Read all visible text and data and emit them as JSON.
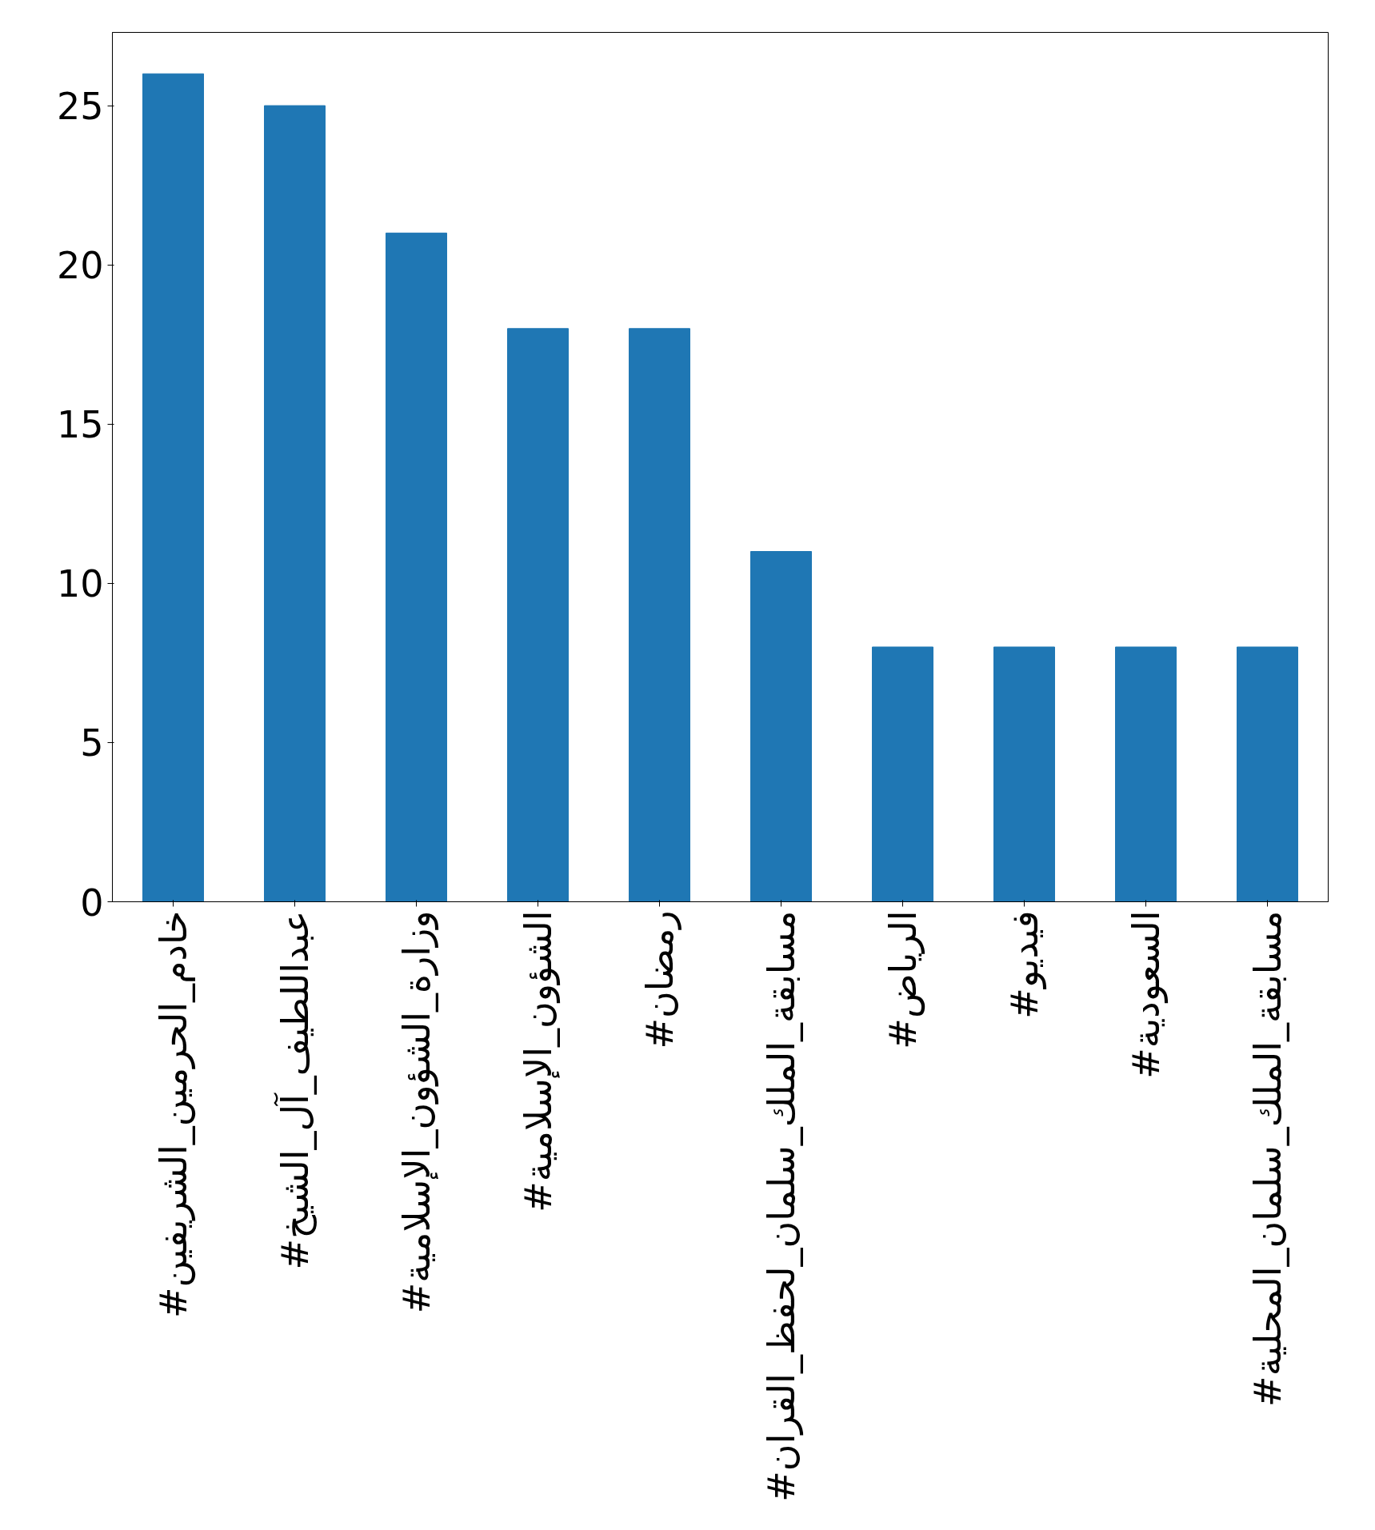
{
  "chart_data": {
    "type": "bar",
    "categories": [
      "#خادم_الحرمين_الشريفين",
      "#عبداللطيف_آل_الشيخ",
      "#وزارة_الشؤون_الإسلامية",
      "#الشؤون_الإسلامية",
      "#رمضان",
      "#مسابقة_الملك_سلمان_لحفظ_القران",
      "#الرياض",
      "#فيديو",
      "#السعودية",
      "#مسابقة_الملك_سلمان_المحلية"
    ],
    "values": [
      26,
      25,
      21,
      18,
      18,
      11,
      8,
      8,
      8,
      8
    ],
    "color": "#1f77b4",
    "ylim": [
      0,
      27.3
    ],
    "yticks": [
      0,
      5,
      10,
      15,
      20,
      25
    ],
    "grid": false
  }
}
